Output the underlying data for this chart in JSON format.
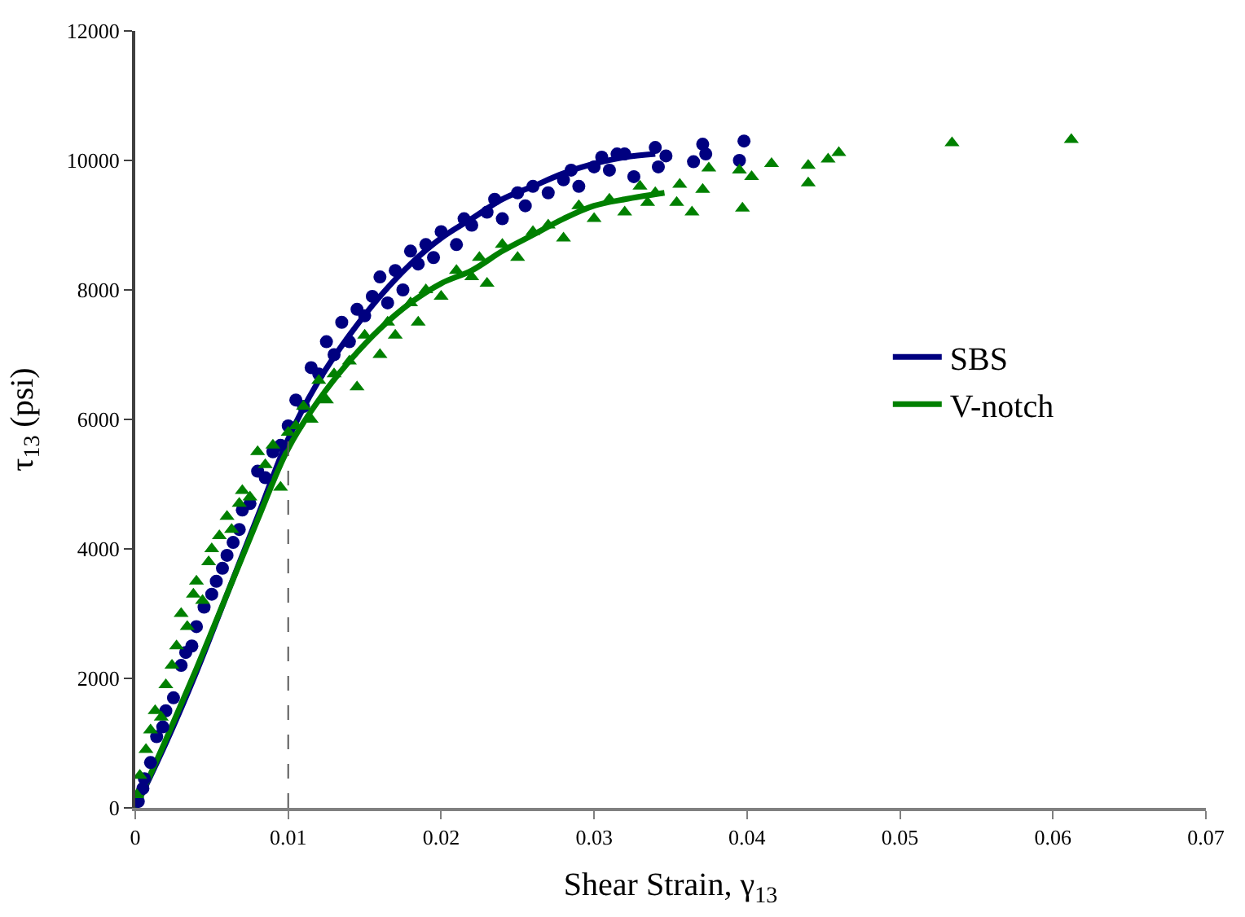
{
  "chart_data": {
    "type": "scatter",
    "xlabel": "Shear Strain, γ$_{13}$",
    "ylabel": "τ$_{13}$ (psi)",
    "xlim": [
      0,
      0.07
    ],
    "xticks": [
      0,
      0.01,
      0.02,
      0.03,
      0.04,
      0.05,
      0.06,
      0.07
    ],
    "ylim": [
      0,
      12000
    ],
    "yticks": [
      0,
      2000,
      4000,
      6000,
      8000,
      10000,
      12000
    ],
    "legend": "right",
    "ref_lines": [
      {
        "axis": "x",
        "value": 0.01,
        "color": "#595959",
        "line_style": "dashed"
      }
    ],
    "series": [
      {
        "marker": "circle",
        "color": "#000080",
        "x": [
          0.0002,
          0.0005,
          0.0006,
          0.001,
          0.0014,
          0.0018,
          0.002,
          0.0025,
          0.003,
          0.0033,
          0.0037,
          0.004,
          0.0045,
          0.005,
          0.0053,
          0.0057,
          0.006,
          0.0064,
          0.0068,
          0.007,
          0.0075,
          0.008,
          0.0085,
          0.009,
          0.0095,
          0.01,
          0.0105,
          0.011,
          0.0115,
          0.012,
          0.0125,
          0.013,
          0.0135,
          0.014,
          0.0145,
          0.015,
          0.0155,
          0.016,
          0.0165,
          0.017,
          0.0175,
          0.018,
          0.0185,
          0.019,
          0.0195,
          0.02,
          0.021,
          0.0215,
          0.022,
          0.023,
          0.0235,
          0.024,
          0.025,
          0.0255,
          0.026,
          0.027,
          0.028,
          0.0285,
          0.029,
          0.03,
          0.0305,
          0.031,
          0.0315,
          0.032,
          0.0326,
          0.034,
          0.0342,
          0.0347,
          0.0365,
          0.0371,
          0.0373,
          0.0395,
          0.0398
        ],
        "values": [
          100,
          300,
          450,
          700,
          1100,
          1250,
          1500,
          1700,
          2200,
          2400,
          2500,
          2800,
          3100,
          3300,
          3500,
          3700,
          3900,
          4100,
          4300,
          4600,
          4700,
          5200,
          5100,
          5500,
          5600,
          5900,
          6300,
          6200,
          6800,
          6700,
          7200,
          7000,
          7500,
          7200,
          7700,
          7600,
          7900,
          8200,
          7800,
          8300,
          8000,
          8600,
          8400,
          8700,
          8500,
          8900,
          8700,
          9100,
          9000,
          9200,
          9400,
          9100,
          9500,
          9300,
          9600,
          9500,
          9700,
          9850,
          9600,
          9900,
          10050,
          9850,
          10100,
          10100,
          9750,
          10200,
          9900,
          10070,
          9980,
          10250,
          10100,
          10000,
          10300
        ]
      },
      {
        "marker": "triangle",
        "color": "#008000",
        "x": [
          0.0001,
          0.0003,
          0.0007,
          0.001,
          0.0013,
          0.0017,
          0.002,
          0.0024,
          0.0027,
          0.003,
          0.0034,
          0.0038,
          0.004,
          0.0044,
          0.0048,
          0.005,
          0.0055,
          0.006,
          0.0063,
          0.0068,
          0.007,
          0.0075,
          0.008,
          0.0085,
          0.009,
          0.0095,
          0.01,
          0.0105,
          0.011,
          0.0115,
          0.012,
          0.0125,
          0.013,
          0.014,
          0.0145,
          0.015,
          0.016,
          0.0165,
          0.017,
          0.018,
          0.0185,
          0.019,
          0.02,
          0.021,
          0.022,
          0.0225,
          0.023,
          0.024,
          0.025,
          0.026,
          0.027,
          0.028,
          0.029,
          0.03,
          0.031,
          0.032,
          0.033,
          0.0335,
          0.034,
          0.0354,
          0.0356,
          0.0364,
          0.0371,
          0.0375,
          0.0395,
          0.0397,
          0.0403,
          0.0416,
          0.044,
          0.044,
          0.0453,
          0.046,
          0.0534,
          0.0612
        ],
        "values": [
          200,
          500,
          900,
          1200,
          1500,
          1400,
          1900,
          2200,
          2500,
          3000,
          2800,
          3300,
          3500,
          3200,
          3800,
          4000,
          4200,
          4500,
          4300,
          4700,
          4900,
          4800,
          5500,
          5300,
          5600,
          4950,
          5800,
          5900,
          6200,
          6000,
          6600,
          6300,
          6700,
          6900,
          6500,
          7300,
          7000,
          7500,
          7300,
          7800,
          7500,
          8000,
          7900,
          8300,
          8200,
          8500,
          8100,
          8700,
          8500,
          8900,
          9000,
          8800,
          9300,
          9100,
          9400,
          9200,
          9600,
          9350,
          9500,
          9350,
          9630,
          9200,
          9550,
          9880,
          9850,
          9260,
          9750,
          9950,
          9920,
          9650,
          10020,
          10120,
          10270,
          10320
        ]
      },
      {
        "type": "line",
        "name": "SBS",
        "marker": "none",
        "line_style": "solid",
        "color": "#000080",
        "x": [
          0,
          0.002,
          0.004,
          0.006,
          0.008,
          0.01,
          0.012,
          0.014,
          0.016,
          0.018,
          0.02,
          0.022,
          0.024,
          0.026,
          0.028,
          0.03,
          0.032,
          0.034
        ],
        "values": [
          0,
          1000,
          2100,
          3300,
          4500,
          5700,
          6600,
          7300,
          7900,
          8400,
          8800,
          9100,
          9400,
          9600,
          9800,
          9950,
          10050,
          10100
        ]
      },
      {
        "type": "line",
        "name": "V-notch",
        "marker": "none",
        "line_style": "solid",
        "color": "#008000",
        "x": [
          0,
          0.002,
          0.004,
          0.006,
          0.008,
          0.01,
          0.012,
          0.014,
          0.016,
          0.018,
          0.02,
          0.022,
          0.024,
          0.026,
          0.028,
          0.03,
          0.032,
          0.0346
        ],
        "values": [
          0,
          1050,
          2150,
          3300,
          4450,
          5550,
          6300,
          6900,
          7400,
          7800,
          8100,
          8300,
          8600,
          8850,
          9100,
          9300,
          9400,
          9500
        ]
      }
    ]
  }
}
